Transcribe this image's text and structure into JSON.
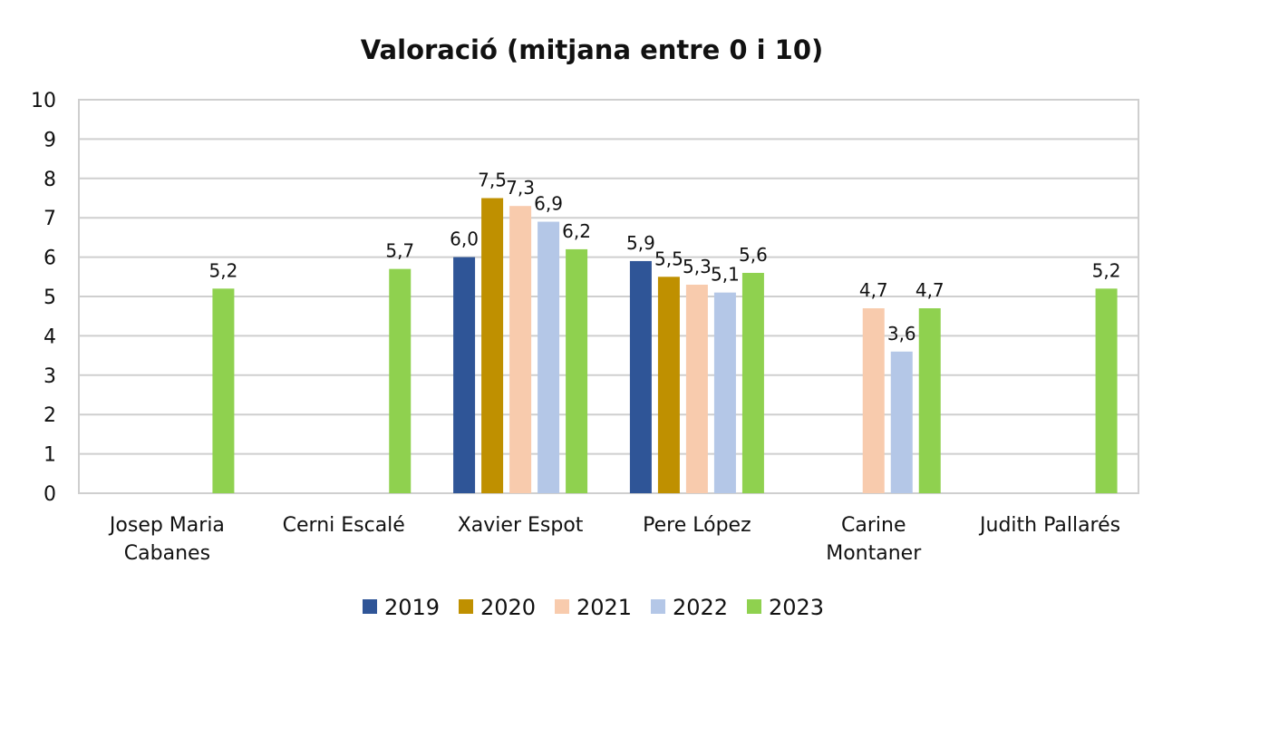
{
  "chart_data": {
    "type": "bar",
    "title": "Valoració (mitjana entre 0 i 10)",
    "xlabel": "",
    "ylabel": "",
    "ylim": [
      0,
      10
    ],
    "yticks": [
      "0",
      "1",
      "2",
      "3",
      "4",
      "5",
      "6",
      "7",
      "8",
      "9",
      "10"
    ],
    "grid": true,
    "legend_position": "bottom",
    "categories": [
      [
        "Josep Maria",
        "Cabanes"
      ],
      [
        "Cerni Escalé"
      ],
      [
        "Xavier Espot"
      ],
      [
        "Pere López"
      ],
      [
        "Carine",
        "Montaner"
      ],
      [
        "Judith Pallarés"
      ]
    ],
    "series": [
      {
        "name": "2019",
        "color": "#2f5597",
        "values": [
          null,
          null,
          6.0,
          5.9,
          null,
          null
        ],
        "labels": [
          null,
          null,
          "6,0",
          "5,9",
          null,
          null
        ]
      },
      {
        "name": "2020",
        "color": "#bf9000",
        "values": [
          null,
          null,
          7.5,
          5.5,
          null,
          null
        ],
        "labels": [
          null,
          null,
          "7,5",
          "5,5",
          null,
          null
        ]
      },
      {
        "name": "2021",
        "color": "#f8cbad",
        "values": [
          null,
          null,
          7.3,
          5.3,
          4.7,
          null
        ],
        "labels": [
          null,
          null,
          "7,3",
          "5,3",
          "4,7",
          null
        ]
      },
      {
        "name": "2022",
        "color": "#b4c7e7",
        "values": [
          null,
          null,
          6.9,
          5.1,
          3.6,
          null
        ],
        "labels": [
          null,
          null,
          "6,9",
          "5,1",
          "3,6",
          null
        ]
      },
      {
        "name": "2023",
        "color": "#8fd14f",
        "values": [
          5.2,
          5.7,
          6.2,
          5.6,
          4.7,
          5.2
        ],
        "labels": [
          "5,2",
          "5,7",
          "6,2",
          "5,6",
          "4,7",
          "5,2"
        ]
      }
    ]
  }
}
